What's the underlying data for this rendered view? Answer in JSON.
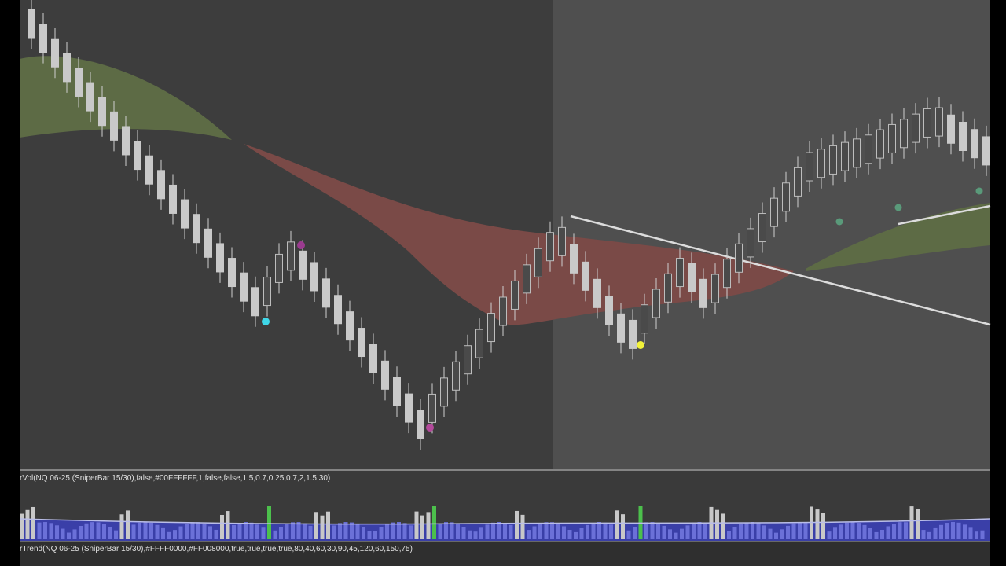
{
  "panels": [
    {
      "label": "rVol(NQ 06-25 (SniperBar 15/30),false,#00FFFFFF,1,false,false,1.5,0.7,0.25,0.7,2,1.5,30)"
    },
    {
      "label": "rTrend(NQ 06-25 (SniperBar 15/30),#FFFF0000,#FF008000,true,true,true,true,80,40,60,30,90,45,120,60,150,75)"
    }
  ]
}
